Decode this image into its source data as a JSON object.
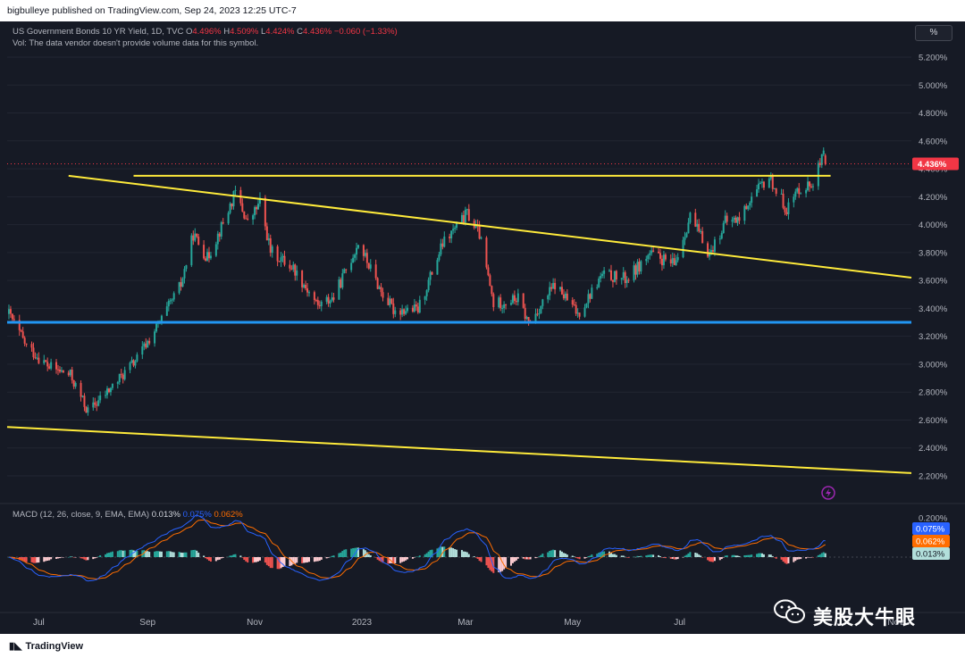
{
  "header": {
    "published": "bigbulleye published on TradingView.com, Sep 24, 2023 12:25 UTC-7"
  },
  "legend": {
    "symbol": "US Government Bonds 10 YR Yield, 1D, TVC",
    "o_label": "O",
    "o_value": "4.496%",
    "h_label": "H",
    "h_value": "4.509%",
    "l_label": "L",
    "l_value": "4.424%",
    "c_label": "C",
    "c_value": "4.436%",
    "change": "−0.060 (−1.33%)",
    "vol_note": "Vol: The data vendor doesn't provide volume data for this symbol."
  },
  "macd_legend": {
    "label": "MACD (12, 26, close, 9, EMA, EMA)",
    "hist_value": "0.013%",
    "macd_value": "0.075%",
    "signal_value": "0.062%"
  },
  "scale_button": "%",
  "footer": {
    "brand": "TradingView",
    "watermark": "美股大牛眼"
  },
  "colors": {
    "background": "#161a25",
    "up": "#26a69a",
    "down": "#ef5350",
    "trendline": "#ffeb3b",
    "support": "#2196f3",
    "macd": "#2962ff",
    "signal": "#ff6d00",
    "last_price": "#f23645"
  },
  "chart_data": [
    {
      "type": "candlestick",
      "title": "US Government Bonds 10 YR Yield, 1D, TVC",
      "y_unit": "%",
      "ylim": [
        2.1,
        5.3
      ],
      "y_ticks": [
        "5.200%",
        "5.000%",
        "4.800%",
        "4.600%",
        "4.400%",
        "4.200%",
        "4.000%",
        "3.800%",
        "3.600%",
        "3.400%",
        "3.200%",
        "3.000%",
        "2.800%",
        "2.600%",
        "2.400%",
        "2.200%"
      ],
      "x_ticks": [
        "Jul",
        "Sep",
        "Nov",
        "2023",
        "Mar",
        "May",
        "Jul",
        "Nov"
      ],
      "last_price": "4.436%",
      "x_range": [
        "2022-06-13",
        "2023-11-10"
      ],
      "close_path": [
        [
          "2022-06-14",
          3.36
        ],
        [
          "2022-06-24",
          3.13
        ],
        [
          "2022-07-07",
          2.98
        ],
        [
          "2022-07-19",
          2.92
        ],
        [
          "2022-07-29",
          2.66
        ],
        [
          "2022-08-12",
          2.84
        ],
        [
          "2022-08-26",
          3.04
        ],
        [
          "2022-09-09",
          3.32
        ],
        [
          "2022-09-20",
          3.57
        ],
        [
          "2022-09-27",
          3.93
        ],
        [
          "2022-10-05",
          3.76
        ],
        [
          "2022-10-14",
          4.01
        ],
        [
          "2022-10-21",
          4.23
        ],
        [
          "2022-10-28",
          4.01
        ],
        [
          "2022-11-04",
          4.16
        ],
        [
          "2022-11-10",
          3.81
        ],
        [
          "2022-11-23",
          3.69
        ],
        [
          "2022-12-07",
          3.42
        ],
        [
          "2022-12-16",
          3.48
        ],
        [
          "2022-12-30",
          3.87
        ],
        [
          "2023-01-12",
          3.52
        ],
        [
          "2023-01-19",
          3.39
        ],
        [
          "2023-02-02",
          3.39
        ],
        [
          "2023-02-16",
          3.86
        ],
        [
          "2023-03-02",
          4.08
        ],
        [
          "2023-03-09",
          3.93
        ],
        [
          "2023-03-17",
          3.43
        ],
        [
          "2023-03-31",
          3.47
        ],
        [
          "2023-04-06",
          3.29
        ],
        [
          "2023-04-21",
          3.57
        ],
        [
          "2023-05-04",
          3.36
        ],
        [
          "2023-05-18",
          3.64
        ],
        [
          "2023-06-01",
          3.61
        ],
        [
          "2023-06-14",
          3.79
        ],
        [
          "2023-06-28",
          3.71
        ],
        [
          "2023-07-07",
          4.06
        ],
        [
          "2023-07-18",
          3.79
        ],
        [
          "2023-07-27",
          4.02
        ],
        [
          "2023-08-04",
          4.04
        ],
        [
          "2023-08-10",
          4.18
        ],
        [
          "2023-08-21",
          4.34
        ],
        [
          "2023-08-31",
          4.11
        ],
        [
          "2023-09-07",
          4.26
        ],
        [
          "2023-09-14",
          4.29
        ],
        [
          "2023-09-21",
          4.49
        ],
        [
          "2023-09-22",
          4.436
        ]
      ],
      "annotations": {
        "resistance_level": [
          [
            "2022-08-24",
            4.35
          ],
          [
            "2023-09-25",
            4.35
          ]
        ],
        "falling_trendline": [
          [
            "2022-07-18",
            4.35
          ],
          [
            "2023-11-10",
            3.62
          ]
        ],
        "support_level": [
          [
            "2022-06-13",
            3.3
          ],
          [
            "2023-11-10",
            3.3
          ]
        ],
        "lower_trendline": [
          [
            "2022-06-13",
            2.55
          ],
          [
            "2023-11-10",
            2.22
          ]
        ]
      }
    },
    {
      "type": "line",
      "title": "MACD (12, 26, close, 9, EMA, EMA)",
      "y_unit": "%",
      "y_ticks": [
        "0.200%"
      ],
      "series": [
        {
          "name": "MACD",
          "last": 0.075
        },
        {
          "name": "Signal",
          "last": 0.062
        },
        {
          "name": "Histogram",
          "last": 0.013
        }
      ]
    }
  ]
}
